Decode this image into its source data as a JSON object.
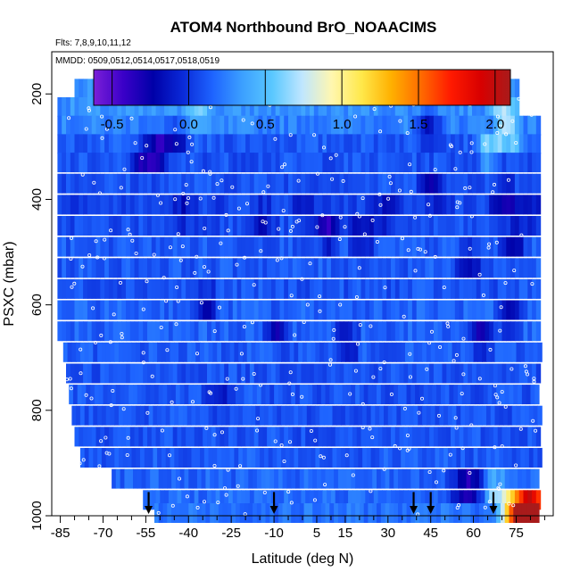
{
  "chart_data": {
    "type": "heatmap",
    "title": "ATOM4 Northbound BrO_NOAACIMS",
    "flights_note": "Flts: 7,8,9,10,11,12",
    "dates_note": "MMDD: 0509,0512,0514,0517,0518,0519",
    "xlabel": "Latitude (deg N)",
    "ylabel": "PSXC (mbar)",
    "xlim": [
      -88,
      88
    ],
    "ylim": [
      1000,
      120
    ],
    "x_ticks": [
      -85,
      -70,
      -55,
      -40,
      -25,
      -10,
      5,
      15,
      30,
      45,
      60,
      75
    ],
    "x_minor_ticks": [
      -80,
      -75,
      -65,
      -60,
      -50,
      -45,
      -35,
      -30,
      -20,
      -15,
      -5,
      0,
      10,
      20,
      25,
      35,
      40,
      50,
      55,
      65,
      70,
      80,
      85
    ],
    "y_ticks": [
      200,
      400,
      600,
      800,
      1000
    ],
    "colorbar": {
      "min": -0.62,
      "max": 2.1,
      "ticks": [
        -0.5,
        0.0,
        0.5,
        1.0,
        1.5,
        2.0
      ],
      "tick_labels": [
        "-0.5",
        "0.0",
        "0.5",
        "1.0",
        "1.5",
        "2.0"
      ],
      "colormap": [
        "#7b1fd8",
        "#3a00c8",
        "#0000a8",
        "#0a2ad8",
        "#1e64ff",
        "#3ca0ff",
        "#5ac8ff",
        "#bfe6ff",
        "#fff7b0",
        "#ffe84a",
        "#ffb000",
        "#ff6a00",
        "#ff1a00",
        "#d80000",
        "#a81b1b"
      ]
    },
    "profile_rows": [
      {
        "p": 190,
        "x0": -80,
        "x1": 76,
        "v": 0.28
      },
      {
        "p": 225,
        "x0": -86,
        "x1": 76,
        "v": 0.3
      },
      {
        "p": 260,
        "x0": -86,
        "x1": 83,
        "v": 0.25
      },
      {
        "p": 295,
        "x0": -86,
        "x1": 83,
        "v": 0.12
      },
      {
        "p": 330,
        "x0": -86,
        "x1": 83,
        "v": 0.1
      },
      {
        "p": 370,
        "x0": -86,
        "x1": 83,
        "v": 0.1
      },
      {
        "p": 410,
        "x0": -86,
        "x1": 83,
        "v": 0.05
      },
      {
        "p": 450,
        "x0": -86,
        "x1": 83,
        "v": 0.08
      },
      {
        "p": 490,
        "x0": -86,
        "x1": 83,
        "v": 0.12
      },
      {
        "p": 530,
        "x0": -86,
        "x1": 83,
        "v": 0.12
      },
      {
        "p": 570,
        "x0": -86,
        "x1": 83,
        "v": 0.1
      },
      {
        "p": 610,
        "x0": -86,
        "x1": 83,
        "v": 0.15
      },
      {
        "p": 650,
        "x0": -86,
        "x1": 83,
        "v": 0.15
      },
      {
        "p": 690,
        "x0": -84,
        "x1": 83,
        "v": 0.12
      },
      {
        "p": 730,
        "x0": -83,
        "x1": 83,
        "v": 0.1
      },
      {
        "p": 770,
        "x0": -82,
        "x1": 83,
        "v": 0.1
      },
      {
        "p": 810,
        "x0": -81,
        "x1": 83,
        "v": 0.1
      },
      {
        "p": 850,
        "x0": -80,
        "x1": 83,
        "v": 0.1
      },
      {
        "p": 890,
        "x0": -78,
        "x1": 83,
        "v": 0.12
      },
      {
        "p": 930,
        "x0": -67,
        "x1": 83,
        "v": 0.15
      },
      {
        "p": 970,
        "x0": -56,
        "x1": 83,
        "v": 0.18
      },
      {
        "p": 995,
        "x0": -52,
        "x1": 83,
        "v": 0.2
      }
    ],
    "enhancements": [
      {
        "lat": -46,
        "p": 290,
        "v": -0.35
      },
      {
        "lat": -52,
        "p": 310,
        "v": -0.45
      },
      {
        "lat": -57,
        "p": 330,
        "v": -0.3
      },
      {
        "lat": -42,
        "p": 420,
        "v": -0.2
      },
      {
        "lat": -15,
        "p": 440,
        "v": -0.25
      },
      {
        "lat": 0,
        "p": 420,
        "v": -0.2
      },
      {
        "lat": 8,
        "p": 460,
        "v": -0.5
      },
      {
        "lat": 20,
        "p": 470,
        "v": -0.35
      },
      {
        "lat": 28,
        "p": 430,
        "v": -0.3
      },
      {
        "lat": 43,
        "p": 260,
        "v": -0.25
      },
      {
        "lat": 45,
        "p": 380,
        "v": -0.3
      },
      {
        "lat": 58,
        "p": 520,
        "v": -0.3
      },
      {
        "lat": 70,
        "p": 400,
        "v": -0.4
      },
      {
        "lat": 73,
        "p": 480,
        "v": -0.35
      },
      {
        "lat": 78,
        "p": 420,
        "v": -0.3
      },
      {
        "lat": -35,
        "p": 600,
        "v": -0.3
      },
      {
        "lat": -30,
        "p": 780,
        "v": -0.2
      },
      {
        "lat": 55,
        "p": 950,
        "v": -0.45
      },
      {
        "lat": 60,
        "p": 950,
        "v": -0.4
      },
      {
        "lat": 62,
        "p": 660,
        "v": -0.4
      },
      {
        "lat": 72,
        "p": 620,
        "v": -0.4
      },
      {
        "lat": -10,
        "p": 650,
        "v": -0.3
      },
      {
        "lat": 15,
        "p": 670,
        "v": -0.3
      },
      {
        "lat": -38,
        "p": 230,
        "v": 0.7
      },
      {
        "lat": 70,
        "p": 230,
        "v": 0.9
      },
      {
        "lat": 72,
        "p": 280,
        "v": 0.75
      },
      {
        "lat": 65,
        "p": 300,
        "v": 0.7
      },
      {
        "lat": 67,
        "p": 960,
        "v": 0.8
      },
      {
        "lat": 74,
        "p": 990,
        "v": 2.0
      },
      {
        "lat": 79,
        "p": 990,
        "v": 2.05
      },
      {
        "lat": 82,
        "p": 990,
        "v": 1.7
      }
    ],
    "arrows_lat": [
      -54,
      -10,
      39,
      45,
      67
    ],
    "arrows_p_top": 955,
    "colors": {
      "background": "#ffffff",
      "axis": "#000000",
      "point_outline": "#ffffff"
    }
  }
}
